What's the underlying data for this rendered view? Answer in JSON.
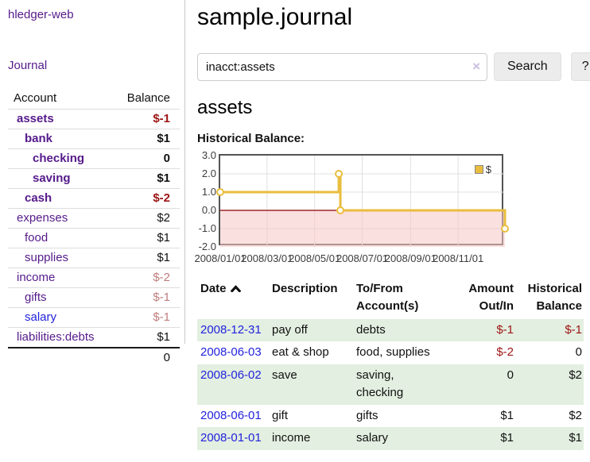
{
  "app": {
    "title": "hledger-web"
  },
  "sidebar": {
    "journal_link": "Journal",
    "accounts": {
      "header": {
        "account": "Account",
        "balance": "Balance"
      },
      "rows": [
        {
          "name": "assets",
          "balance": "$-1",
          "depth": 0,
          "emphasis": true,
          "balance_tone": "negative-strong"
        },
        {
          "name": "bank",
          "balance": "$1",
          "depth": 1,
          "emphasis": true,
          "balance_tone": "normal"
        },
        {
          "name": "checking",
          "balance": "0",
          "depth": 2,
          "emphasis": true,
          "balance_tone": "normal"
        },
        {
          "name": "saving",
          "balance": "$1",
          "depth": 2,
          "emphasis": true,
          "balance_tone": "normal"
        },
        {
          "name": "cash",
          "balance": "$-2",
          "depth": 1,
          "emphasis": true,
          "balance_tone": "negative-strong"
        },
        {
          "name": "expenses",
          "balance": "$2",
          "depth": 0,
          "emphasis": false,
          "balance_tone": "normal"
        },
        {
          "name": "food",
          "balance": "$1",
          "depth": 1,
          "emphasis": false,
          "balance_tone": "normal"
        },
        {
          "name": "supplies",
          "balance": "$1",
          "depth": 1,
          "emphasis": false,
          "balance_tone": "normal"
        },
        {
          "name": "income",
          "balance": "$-2",
          "depth": 0,
          "emphasis": false,
          "balance_tone": "negative-muted"
        },
        {
          "name": "gifts",
          "balance": "$-1",
          "depth": 1,
          "emphasis": false,
          "balance_tone": "negative-muted"
        },
        {
          "name": "salary",
          "balance": "$-1",
          "depth": 1,
          "emphasis": false,
          "balance_tone": "negative-muted",
          "link_tone": "unvisited"
        },
        {
          "name": "liabilities:debts",
          "balance": "$1",
          "depth": 0,
          "emphasis": false,
          "balance_tone": "normal"
        }
      ],
      "total": "0"
    }
  },
  "main": {
    "title": "sample.journal",
    "search": {
      "value": "inacct:assets",
      "clear_label": "×",
      "search_button": "Search",
      "help_button": "?"
    },
    "account_heading": "assets",
    "chart_label": "Historical Balance:",
    "register": {
      "headers": {
        "date": "Date",
        "description": "Description",
        "accounts": "To/From\nAccount(s)",
        "amount": "Amount\nOut/In",
        "balance": "Historical\nBalance"
      },
      "rows": [
        {
          "date": "2008-12-31",
          "description": "pay off",
          "accounts": "debts",
          "amount": "$-1",
          "amount_tone": "negative-strong",
          "balance": "$-1",
          "balance_tone": "negative-strong"
        },
        {
          "date": "2008-06-03",
          "description": "eat & shop",
          "accounts": "food, supplies",
          "amount": "$-2",
          "amount_tone": "negative-strong",
          "balance": "0",
          "balance_tone": "normal"
        },
        {
          "date": "2008-06-02",
          "description": "save",
          "accounts": "saving, checking",
          "amount": "0",
          "amount_tone": "normal",
          "balance": "$2",
          "balance_tone": "normal"
        },
        {
          "date": "2008-06-01",
          "description": "gift",
          "accounts": "gifts",
          "amount": "$1",
          "amount_tone": "normal",
          "balance": "$2",
          "balance_tone": "normal"
        },
        {
          "date": "2008-01-01",
          "description": "income",
          "accounts": "salary",
          "amount": "$1",
          "amount_tone": "normal",
          "balance": "$1",
          "balance_tone": "normal"
        }
      ]
    }
  },
  "chart_data": {
    "type": "line",
    "style": "step",
    "title": "Historical Balance",
    "series": [
      {
        "name": "$",
        "color": "#e9bd3e",
        "points": [
          [
            "2008-01-01",
            1
          ],
          [
            "2008-06-01",
            2
          ],
          [
            "2008-06-03",
            0
          ],
          [
            "2008-12-31",
            -1
          ]
        ]
      }
    ],
    "x_domain": [
      "2008-01-01",
      "2008-12-31"
    ],
    "x_ticks": [
      "2008/01/01",
      "2008/03/01",
      "2008/05/01",
      "2008/07/01",
      "2008/09/01",
      "2008/11/01"
    ],
    "y_ticks": [
      3.0,
      2.0,
      1.0,
      0.0,
      -1.0,
      -2.0
    ],
    "ylim": [
      -2.0,
      3.0
    ],
    "grid": true,
    "legend_position": "top-right",
    "grid_color": "#e0e0e0",
    "border_color": "#545454",
    "negative_region_color": "#f8c6c6",
    "zero_line_color": "#8b0000"
  },
  "colors": {
    "link_purple": "#551a8b",
    "link_blue": "#2222dd",
    "negative_strong": "#9d1414",
    "negative_muted": "#c07d7d",
    "row_green": "#e3efe0",
    "series_gold": "#e9bd3e"
  }
}
